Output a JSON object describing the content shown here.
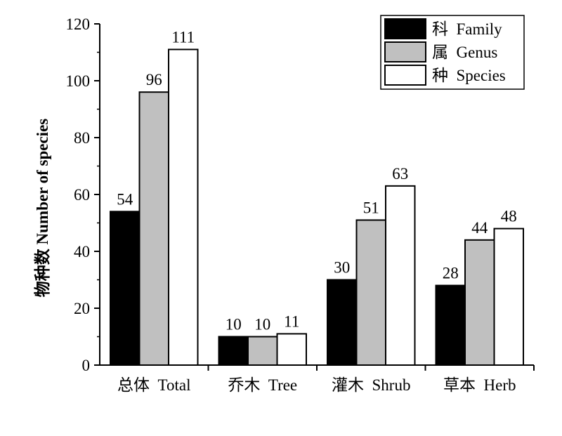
{
  "chart_data": {
    "type": "bar",
    "ylabel": "物种数   Number of species",
    "xlabel": "",
    "ylim": [
      0,
      120
    ],
    "yticks": [
      0,
      20,
      40,
      60,
      80,
      100,
      120
    ],
    "categories": [
      "总体  Total",
      "乔木  Tree",
      "灌木  Shrub",
      "草本  Herb"
    ],
    "series": [
      {
        "name": "科  Family",
        "values": [
          54,
          10,
          30,
          28
        ],
        "color": "#000000"
      },
      {
        "name": "属  Genus",
        "values": [
          96,
          10,
          51,
          44
        ],
        "color": "#c0c0c0"
      },
      {
        "name": "种  Species",
        "values": [
          111,
          11,
          63,
          48
        ],
        "color": "#ffffff"
      }
    ],
    "legend": "top-right",
    "grid": false
  }
}
